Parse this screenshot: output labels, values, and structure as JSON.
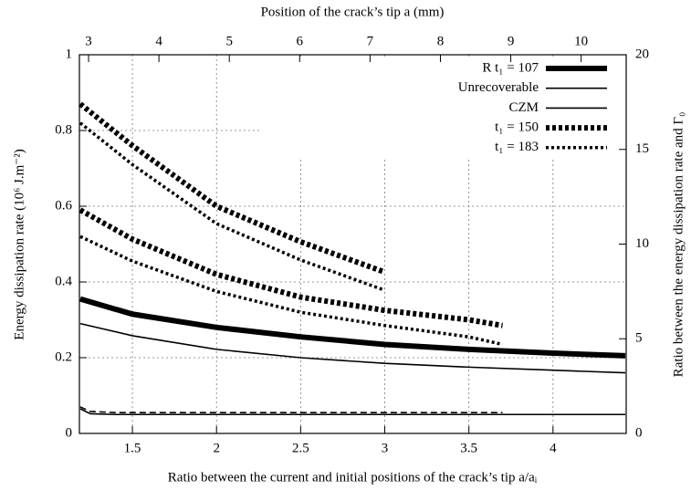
{
  "chart_data": {
    "type": "line",
    "xlabel": "Ratio between the current and initial positions of the crack’s tip a/aᵢ",
    "x2label": "Position of the crack’s tip a (mm)",
    "ylabel": "Energy dissipation rate (10⁶ J.m⁻²)",
    "y2label": "Ratio between the energy dissipation rate and Γ₀",
    "xlim": [
      1.185,
      4.435
    ],
    "xticks": [
      1.5,
      2,
      2.5,
      3,
      3.5,
      4
    ],
    "x2lim": [
      2.87,
      10.64
    ],
    "x2ticks": [
      3,
      4,
      5,
      6,
      7,
      8,
      9,
      10
    ],
    "ylim": [
      0,
      1
    ],
    "yticks": [
      0,
      0.2,
      0.4,
      0.6,
      0.8,
      1
    ],
    "y2lim": [
      0,
      20
    ],
    "y2ticks": [
      0,
      5,
      10,
      15,
      20
    ],
    "grid": true,
    "legend": "top-right",
    "series": [
      {
        "name": "R t₁ = 107",
        "color": "#000000",
        "dash": "solid",
        "line_width": 6,
        "x": [
          1.19,
          1.5,
          2,
          2.5,
          3,
          3.5,
          4,
          4.43
        ],
        "values": [
          0.355,
          0.315,
          0.28,
          0.255,
          0.235,
          0.222,
          0.212,
          0.205
        ]
      },
      {
        "name": "Unrecoverable",
        "color": "#000000",
        "dash": "solid",
        "line_width": 1.6,
        "x": [
          1.19,
          1.5,
          2,
          2.5,
          3,
          3.5,
          4,
          4.43
        ],
        "values": [
          0.29,
          0.258,
          0.222,
          0.2,
          0.185,
          0.175,
          0.167,
          0.16
        ]
      },
      {
        "name": "CZM",
        "color": "#000000",
        "dash": "solid",
        "line_width": 1.6,
        "x": [
          1.19,
          1.25,
          1.4,
          4.43
        ],
        "values": [
          0.065,
          0.052,
          0.05,
          0.05
        ]
      },
      {
        "name": "t₁ = 150",
        "color": "#000000",
        "dash": "dotted",
        "line_width": 6,
        "x": [
          1.19,
          1.5,
          2,
          2.5,
          3,
          3.5,
          3.7
        ],
        "values": [
          0.59,
          0.513,
          0.42,
          0.36,
          0.325,
          0.3,
          0.285
        ]
      },
      {
        "name": "t₁ = 183",
        "color": "#000000",
        "dash": "dotted",
        "line_width": 3.5,
        "x": [
          1.19,
          1.5,
          2,
          2.5,
          3,
          3.5,
          3.7
        ],
        "values": [
          0.52,
          0.455,
          0.375,
          0.32,
          0.285,
          0.255,
          0.235
        ]
      },
      {
        "color": "#000000",
        "dash": "dotted",
        "line_width": 6,
        "x": [
          1.19,
          1.5,
          2,
          2.5,
          3
        ],
        "values": [
          0.87,
          0.76,
          0.6,
          0.506,
          0.426
        ]
      },
      {
        "color": "#000000",
        "dash": "dotted",
        "line_width": 3.5,
        "x": [
          1.19,
          1.5,
          2,
          2.5,
          3
        ],
        "values": [
          0.82,
          0.71,
          0.554,
          0.458,
          0.378
        ]
      },
      {
        "color": "#000000",
        "dash": "dashed",
        "line_width": 1.6,
        "x": [
          1.19,
          1.25,
          1.4,
          3.7
        ],
        "values": [
          0.07,
          0.058,
          0.055,
          0.055
        ]
      }
    ]
  }
}
